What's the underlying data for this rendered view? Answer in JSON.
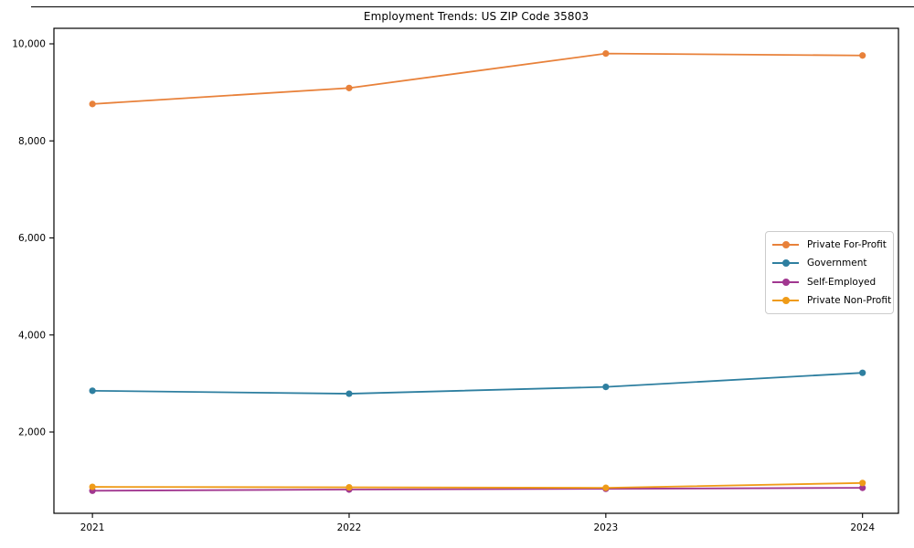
{
  "chart_data": {
    "type": "line",
    "title": "Employment Trends: US ZIP Code 35803",
    "x": [
      2021,
      2022,
      2023,
      2024
    ],
    "x_tick_labels": [
      "2021",
      "2022",
      "2023",
      "2024"
    ],
    "y_ticks": [
      2000,
      4000,
      6000,
      8000,
      10000
    ],
    "y_tick_labels": [
      "2,000",
      "4,000",
      "6,000",
      "8,000",
      "10,000"
    ],
    "xlim": [
      2020.85,
      2024.14
    ],
    "ylim": [
      325,
      10320
    ],
    "grid": false,
    "legend_position": "center right",
    "series": [
      {
        "name": "Private For-Profit",
        "color": "#e8813a",
        "values": [
          8760,
          9090,
          9800,
          9760
        ]
      },
      {
        "name": "Government",
        "color": "#2e7fa0",
        "values": [
          2850,
          2790,
          2930,
          3220
        ]
      },
      {
        "name": "Self-Employed",
        "color": "#a13790",
        "values": [
          790,
          815,
          830,
          850
        ]
      },
      {
        "name": "Private Non-Profit",
        "color": "#ef9b18",
        "values": [
          870,
          860,
          850,
          950
        ]
      }
    ]
  }
}
